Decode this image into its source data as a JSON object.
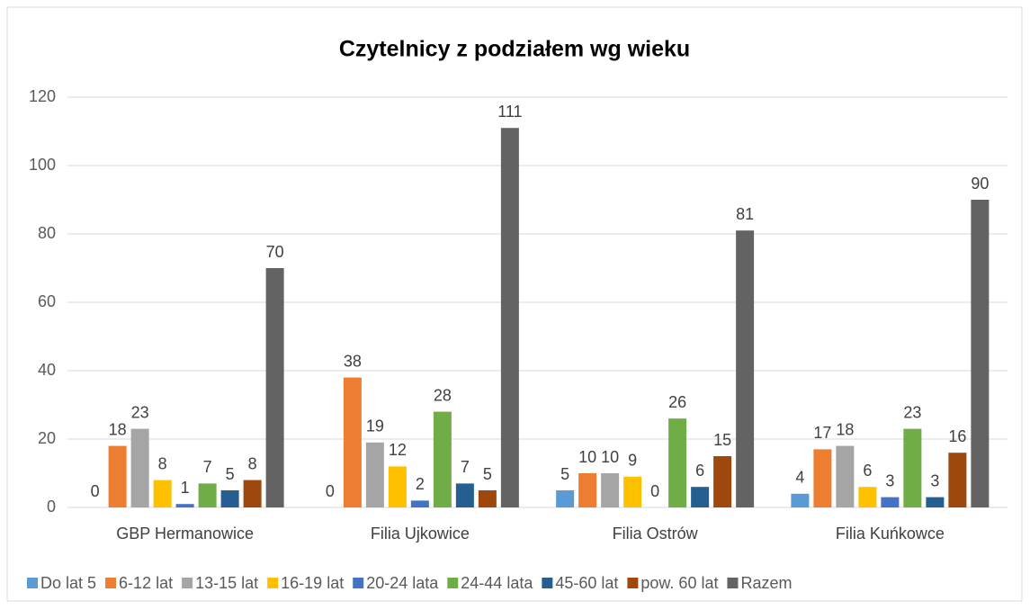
{
  "chart_data": {
    "type": "bar",
    "title": "Czytelnicy z podziałem wg wieku",
    "categories": [
      "GBP Hermanowice",
      "Filia Ujkowice",
      "Filia Ostrów",
      "Filia Kuńkowce"
    ],
    "series": [
      {
        "name": "Do lat 5",
        "color": "#5b9bd5",
        "values": [
          0,
          0,
          5,
          4
        ]
      },
      {
        "name": "6-12 lat",
        "color": "#ed7d31",
        "values": [
          18,
          38,
          10,
          17
        ]
      },
      {
        "name": "13-15 lat",
        "color": "#a5a5a5",
        "values": [
          23,
          19,
          10,
          18
        ]
      },
      {
        "name": "16-19 lat",
        "color": "#ffc000",
        "values": [
          8,
          12,
          9,
          6
        ]
      },
      {
        "name": "20-24 lata",
        "color": "#4472c4",
        "values": [
          1,
          2,
          0,
          3
        ]
      },
      {
        "name": "24-44 lata",
        "color": "#70ad47",
        "values": [
          7,
          28,
          26,
          23
        ]
      },
      {
        "name": "45-60 lat",
        "color": "#255e91",
        "values": [
          5,
          7,
          6,
          3
        ]
      },
      {
        "name": "pow. 60 lat",
        "color": "#9e480e",
        "values": [
          8,
          5,
          15,
          16
        ]
      },
      {
        "name": "Razem",
        "color": "#636363",
        "values": [
          70,
          111,
          81,
          90
        ]
      }
    ],
    "ylim": [
      0,
      120
    ],
    "yticks": [
      0,
      20,
      40,
      60,
      80,
      100,
      120
    ],
    "grid": true,
    "legend": "bottom"
  }
}
